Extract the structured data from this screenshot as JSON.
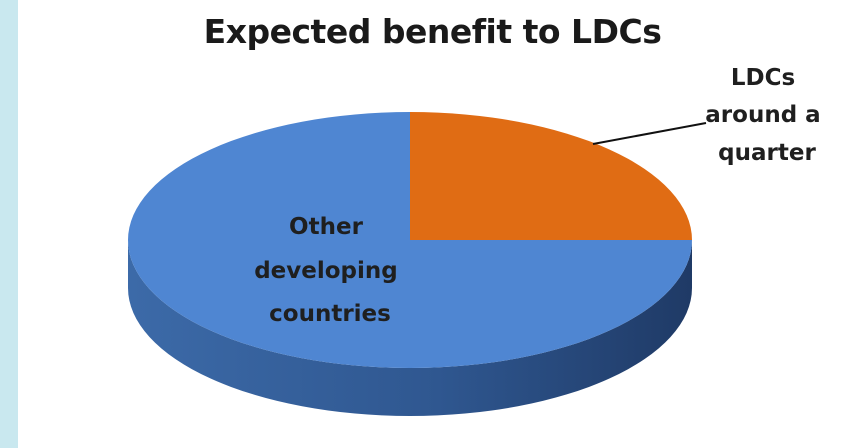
{
  "chart_data": {
    "type": "pie",
    "title": "Expected benefit to LDCs",
    "style": "3d",
    "start_angle_deg": 0,
    "direction": "clockwise",
    "slices": [
      {
        "label": "LDCs around a quarter",
        "label_lines": [
          "LDCs",
          "around a",
          "quarter"
        ],
        "value": 25,
        "color": "#e06c14"
      },
      {
        "label": "Other developing countries",
        "label_lines": [
          "Other",
          "developing",
          "countries"
        ],
        "value": 75,
        "color": "#4f86d2"
      }
    ]
  }
}
